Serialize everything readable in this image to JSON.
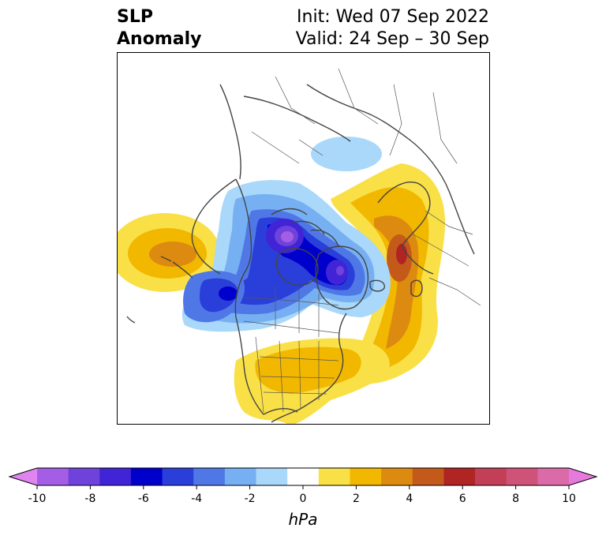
{
  "title": {
    "left_line1": "SLP",
    "left_line2": "Anomaly",
    "right_line1": "Init: Wed 07 Sep 2022",
    "right_line2": "Valid: 24 Sep – 30 Sep"
  },
  "colorbar": {
    "unit": "hPa",
    "ticks": [
      "-10",
      "-8",
      "-6",
      "-4",
      "-2",
      "0",
      "2",
      "4",
      "6",
      "8",
      "10"
    ],
    "levels": [
      -10,
      -9,
      -8,
      -7,
      -6,
      -5,
      -4,
      -3,
      -2,
      -1,
      1,
      2,
      3,
      4,
      5,
      6,
      7,
      8,
      9,
      10
    ],
    "colors": [
      "#e085f0",
      "#a45ee6",
      "#6f42db",
      "#4024d6",
      "#0000cc",
      "#2a3fd9",
      "#4f78e6",
      "#77b0f2",
      "#a9d8fa",
      "#ffffff",
      "#f9e047",
      "#f2b800",
      "#dc8a10",
      "#c45a1a",
      "#b12424",
      "#c33f58",
      "#cf5278",
      "#da6aa8",
      "#e679dc"
    ],
    "extend": "both"
  },
  "map": {
    "projection": "polar stereographic, North America / Arctic",
    "highlights": {
      "strongest_low": "Baffin Bay / Greenland area, below -8 hPa",
      "strongest_high": "Siberia / Russian Far East, near +6 hPa"
    }
  }
}
